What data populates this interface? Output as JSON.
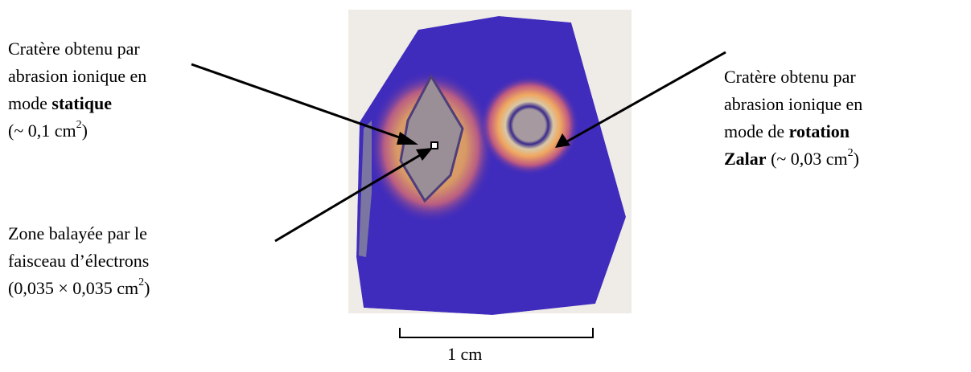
{
  "labels": {
    "static_crater": {
      "line1": [
        "Cratère",
        "obtenu",
        "par"
      ],
      "line2": [
        "abrasion",
        "ionique",
        "en"
      ],
      "line3_prefix": "mode ",
      "line3_bold": "statique",
      "line4_prefix": "(~ 0,1 cm",
      "line4_sup": "2",
      "line4_suffix": ")"
    },
    "rotation_crater": {
      "line1": [
        "Cratère",
        "obtenu",
        "par"
      ],
      "line2": [
        "abrasion",
        "ionique",
        "en"
      ],
      "line3": [
        "mode",
        "de"
      ],
      "line3_bold": "rotation",
      "line4_bold": "Zalar",
      "line4_text": " (~ 0,03 cm",
      "line4_sup": "2",
      "line4_suffix": ")"
    },
    "scan_zone": {
      "line1": [
        "Zone",
        "balayée",
        "par",
        "le"
      ],
      "line2": "faisceau d’électrons",
      "line3_prefix": "(0,035 × 0,035 cm",
      "line3_sup": "2",
      "line3_suffix": ")"
    }
  },
  "scale_bar": {
    "label": "1 cm"
  },
  "colors": {
    "sample": "#3c2ab8",
    "background_photo": "#efece8",
    "halo": "#e2a25a",
    "crater_fill": "#9a8f96",
    "ring": "#3a2a8a"
  }
}
